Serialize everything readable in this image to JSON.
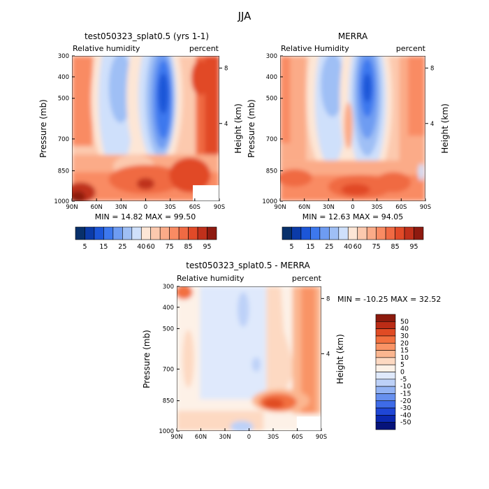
{
  "page": {
    "title": "JJA"
  },
  "palettes": {
    "abs": [
      "#08306b",
      "#0b3ba8",
      "#1c56d8",
      "#3d78ee",
      "#6e9cf2",
      "#9fbff5",
      "#cfe0fb",
      "#fde6d6",
      "#fcc9ae",
      "#fbab88",
      "#f98b63",
      "#f06a43",
      "#e14a28",
      "#c0301b",
      "#8e1a10"
    ],
    "diff": [
      "#06137a",
      "#0b28b0",
      "#1f46d6",
      "#3e6be8",
      "#6790ef",
      "#93b3f4",
      "#bdd1f8",
      "#dfe9fc",
      "#fdf1e7",
      "#fdd9c2",
      "#fbb690",
      "#f99466",
      "#f2703f",
      "#e04b24",
      "#bb2c16",
      "#8c1a0d"
    ]
  },
  "chart_data": [
    {
      "type": "heatmap",
      "id": "model",
      "title": "test050323_splat0.5 (yrs 1-1)",
      "left_label": "Relative humidity",
      "right_label": "percent",
      "ylabel": "Pressure (mb)",
      "y2label": "Height (km)",
      "x_ticks": [
        "90N",
        "60N",
        "30N",
        "0",
        "30S",
        "60S",
        "90S"
      ],
      "y_ticks": [
        "300",
        "400",
        "500",
        "700",
        "850",
        "1000"
      ],
      "y2_ticks": [
        "8",
        "4"
      ],
      "ylim": [
        1000,
        300
      ],
      "stats_text": "MIN =  14.82   MAX =  99.50",
      "colorbar_labels": [
        "5",
        "15",
        "25",
        "40",
        "60",
        "75",
        "85",
        "95"
      ],
      "min": 14.82,
      "max": 99.5
    },
    {
      "type": "heatmap",
      "id": "obs",
      "title": "MERRA",
      "left_label": "Relative Humidity",
      "right_label": "percent",
      "ylabel": "Pressure (mb)",
      "y2label": "Height (km)",
      "x_ticks": [
        "90N",
        "60N",
        "30N",
        "0",
        "30S",
        "60S",
        "90S"
      ],
      "y_ticks": [
        "300",
        "400",
        "500",
        "700",
        "850",
        "1000"
      ],
      "y2_ticks": [
        "8",
        "4"
      ],
      "ylim": [
        1000,
        300
      ],
      "stats_text": "MIN =  12.63   MAX =  94.05",
      "colorbar_labels": [
        "5",
        "15",
        "25",
        "40",
        "60",
        "75",
        "85",
        "95"
      ],
      "min": 12.63,
      "max": 94.05
    },
    {
      "type": "heatmap",
      "id": "diff",
      "title": "test050323_splat0.5 - MERRA",
      "left_label": "Relative humidity",
      "right_label": "percent",
      "ylabel": "Pressure (mb)",
      "y2label": "Height (km)",
      "x_ticks": [
        "90N",
        "60N",
        "30N",
        "0",
        "30S",
        "60S",
        "90S"
      ],
      "y_ticks": [
        "300",
        "400",
        "500",
        "700",
        "850",
        "1000"
      ],
      "y2_ticks": [
        "8",
        "4"
      ],
      "ylim": [
        1000,
        300
      ],
      "stats_text": "MIN = -10.25   MAX =  32.52",
      "colorbar_labels": [
        "50",
        "40",
        "30",
        "20",
        "15",
        "10",
        "5",
        "0",
        "-5",
        "-10",
        "-15",
        "-20",
        "-30",
        "-40",
        "-50"
      ],
      "min": -10.25,
      "max": 32.52
    }
  ]
}
